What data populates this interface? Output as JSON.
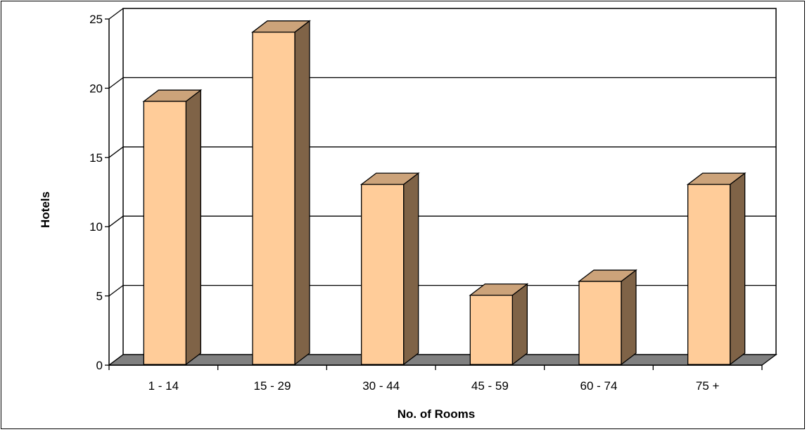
{
  "chart_data": {
    "type": "bar",
    "title": "",
    "xlabel": "No. of Rooms",
    "ylabel": "Hotels",
    "categories": [
      "1 - 14",
      "15 - 29",
      "30 - 44",
      "45 - 59",
      "60 - 74",
      "75 +"
    ],
    "values": [
      19,
      24,
      13,
      5,
      6,
      13
    ],
    "ylim": [
      0,
      25
    ],
    "yticks": [
      "0",
      "5",
      "10",
      "15",
      "20",
      "25"
    ],
    "grid": true,
    "legend": "none",
    "style": "3d-column"
  },
  "colors": {
    "bar_front": "#FFCC99",
    "bar_side": "#7F6347",
    "bar_top": "#CCA37A",
    "floor": "#808080",
    "grid": "#000000"
  }
}
